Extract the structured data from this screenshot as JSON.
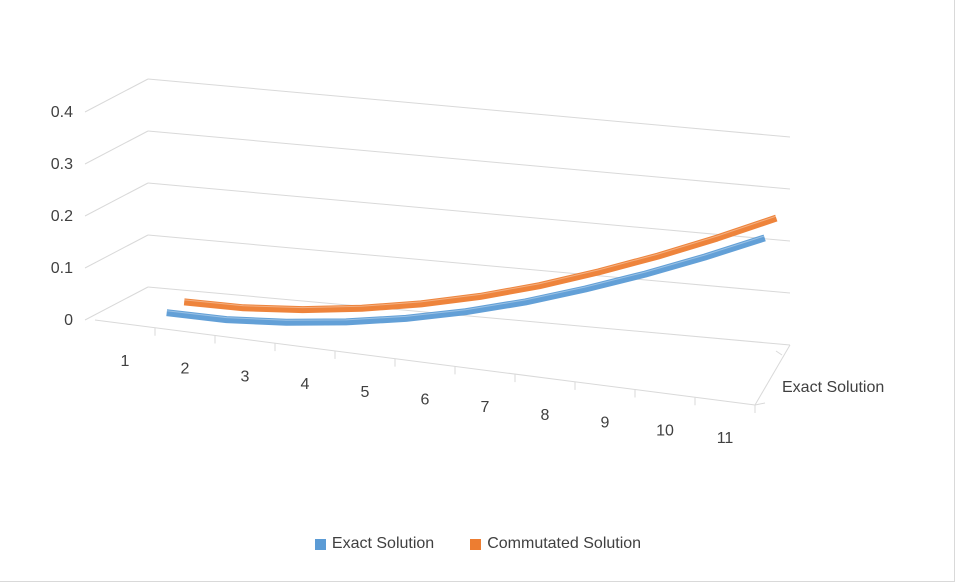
{
  "chart_data": {
    "type": "line",
    "categories": [
      "1",
      "2",
      "3",
      "4",
      "5",
      "6",
      "7",
      "8",
      "9",
      "10",
      "11"
    ],
    "series": [
      {
        "name": "Exact Solution",
        "values": [
          0.0,
          0.002,
          0.012,
          0.028,
          0.05,
          0.078,
          0.112,
          0.152,
          0.196,
          0.244,
          0.296
        ]
      },
      {
        "name": "Commutated Solution",
        "values": [
          0.0,
          0.002,
          0.012,
          0.028,
          0.05,
          0.078,
          0.112,
          0.152,
          0.196,
          0.244,
          0.296
        ]
      }
    ],
    "y_ticks": [
      "0",
      "0.1",
      "0.2",
      "0.3",
      "0.4"
    ],
    "ylim": [
      0,
      0.4
    ],
    "depth_axis_label": "Exact Solution",
    "grid": true,
    "legend_position": "bottom",
    "colors": {
      "Exact Solution": "#5b9bd5",
      "Commutated Solution": "#ed7d31",
      "grid": "#d9d9d9",
      "text": "#404040"
    }
  }
}
